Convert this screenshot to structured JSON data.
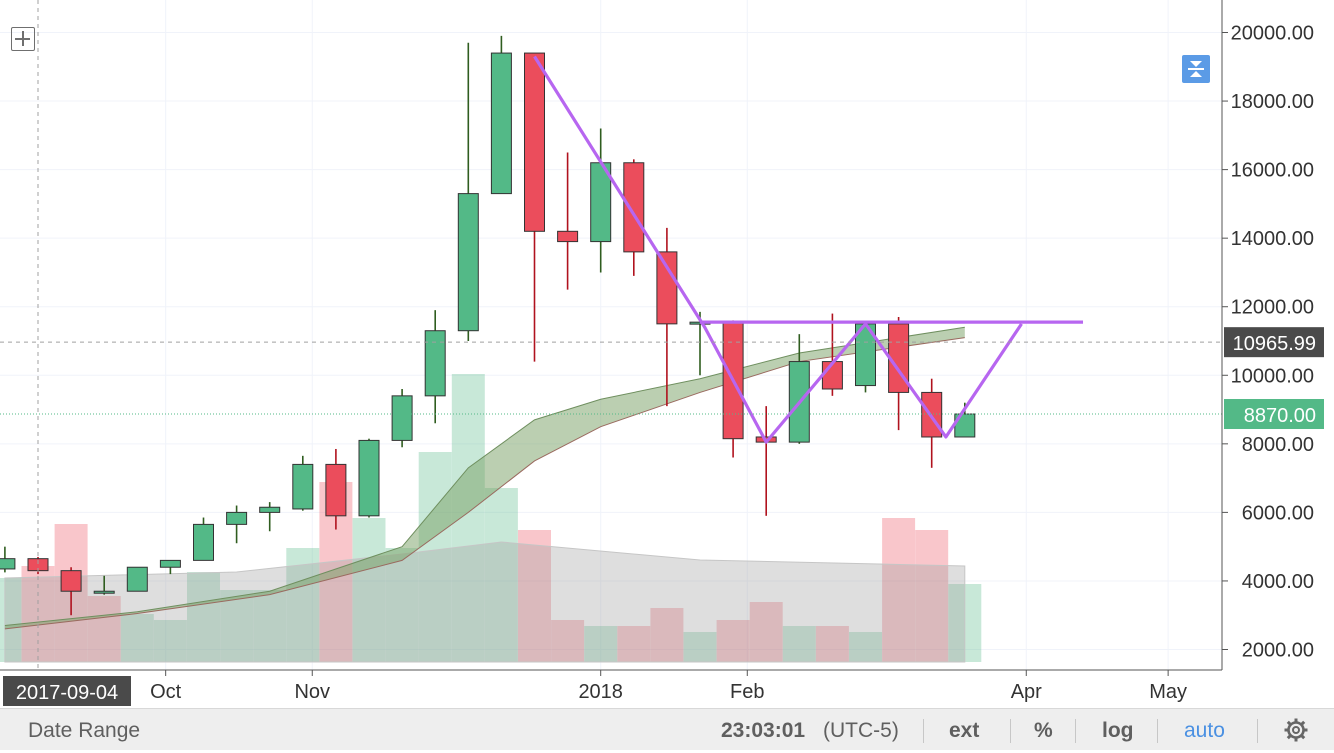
{
  "toolbar": {
    "date_range_label": "Date Range",
    "time": "23:03:01",
    "timezone": "(UTC-5)",
    "ext_label": "ext",
    "percent_label": "%",
    "log_label": "log",
    "auto_label": "auto",
    "icons": {
      "crosshair": "crosshair-icon",
      "compress": "compress-icon",
      "settings": "gear-icon"
    }
  },
  "chart_data": {
    "type": "candlestick",
    "title": "",
    "ylim": [
      1600,
      20700
    ],
    "y_ticks": [
      2000,
      4000,
      6000,
      8000,
      10000,
      12000,
      14000,
      16000,
      18000,
      20000
    ],
    "y_tick_labels": [
      "2000.00",
      "4000.00",
      "6000.00",
      "8000.00",
      "10000.00",
      "12000.00",
      "14000.00",
      "16000.00",
      "18000.00",
      "20000.00"
    ],
    "x_ticks": [
      {
        "label": "Oct",
        "date": "2017-10-01"
      },
      {
        "label": "Nov",
        "date": "2017-11-01"
      },
      {
        "label": "2018",
        "date": "2018-01-01"
      },
      {
        "label": "Feb",
        "date": "2018-02-01"
      },
      {
        "label": "Apr",
        "date": "2018-04-01"
      },
      {
        "label": "May",
        "date": "2018-05-01"
      }
    ],
    "cursor_date_label": "2017-09-04",
    "cursor_date": "2017-09-04",
    "cursor_price_label": "10965.99",
    "cursor_price": 10965.99,
    "last_price_label": "8870.00",
    "last_price": 8870,
    "colors": {
      "up": "#53b987",
      "down": "#eb4d5c",
      "pattern": "#b766f0",
      "cloud": "#9dbf8f",
      "volume_avg": "#cfcfcf"
    },
    "candles": [
      {
        "date": "2017-08-28",
        "open": 4350,
        "high": 5000,
        "low": 4250,
        "close": 4650
      },
      {
        "date": "2017-09-04",
        "open": 4650,
        "high": 4700,
        "low": 4200,
        "close": 4300
      },
      {
        "date": "2017-09-11",
        "open": 4300,
        "high": 4400,
        "low": 3000,
        "close": 3700
      },
      {
        "date": "2017-09-18",
        "open": 3700,
        "high": 4150,
        "low": 3600,
        "close": 3700
      },
      {
        "date": "2017-09-25",
        "open": 3700,
        "high": 4400,
        "low": 3700,
        "close": 4400
      },
      {
        "date": "2017-10-02",
        "open": 4400,
        "high": 4600,
        "low": 4200,
        "close": 4600
      },
      {
        "date": "2017-10-09",
        "open": 4600,
        "high": 5850,
        "low": 4600,
        "close": 5650
      },
      {
        "date": "2017-10-16",
        "open": 5650,
        "high": 6200,
        "low": 5100,
        "close": 6000
      },
      {
        "date": "2017-10-23",
        "open": 6000,
        "high": 6300,
        "low": 5450,
        "close": 6150
      },
      {
        "date": "2017-10-30",
        "open": 6100,
        "high": 7650,
        "low": 6050,
        "close": 7400
      },
      {
        "date": "2017-11-06",
        "open": 7400,
        "high": 7850,
        "low": 5500,
        "close": 5900
      },
      {
        "date": "2017-11-13",
        "open": 5900,
        "high": 8150,
        "low": 5850,
        "close": 8100
      },
      {
        "date": "2017-11-20",
        "open": 8100,
        "high": 9600,
        "low": 7900,
        "close": 9400
      },
      {
        "date": "2017-11-27",
        "open": 9400,
        "high": 11900,
        "low": 8600,
        "close": 11300
      },
      {
        "date": "2017-12-04",
        "open": 11300,
        "high": 19700,
        "low": 11000,
        "close": 15300
      },
      {
        "date": "2017-12-11",
        "open": 15300,
        "high": 19900,
        "low": 15300,
        "close": 19400
      },
      {
        "date": "2017-12-18",
        "open": 19400,
        "high": 19400,
        "low": 10400,
        "close": 14200
      },
      {
        "date": "2017-12-25",
        "open": 14200,
        "high": 16500,
        "low": 12500,
        "close": 13900
      },
      {
        "date": "2018-01-01",
        "open": 13900,
        "high": 17200,
        "low": 13000,
        "close": 16200
      },
      {
        "date": "2018-01-08",
        "open": 16200,
        "high": 16300,
        "low": 12900,
        "close": 13600
      },
      {
        "date": "2018-01-15",
        "open": 13600,
        "high": 14300,
        "low": 9100,
        "close": 11500
      },
      {
        "date": "2018-01-22",
        "open": 11500,
        "high": 11850,
        "low": 10000,
        "close": 11550
      },
      {
        "date": "2018-01-29",
        "open": 11550,
        "high": 11600,
        "low": 7600,
        "close": 8150
      },
      {
        "date": "2018-02-05",
        "open": 8200,
        "high": 9100,
        "low": 5900,
        "close": 8050
      },
      {
        "date": "2018-02-12",
        "open": 8050,
        "high": 11200,
        "low": 8000,
        "close": 10400
      },
      {
        "date": "2018-02-19",
        "open": 10400,
        "high": 11800,
        "low": 9400,
        "close": 9600
      },
      {
        "date": "2018-02-26",
        "open": 9700,
        "high": 11500,
        "low": 9500,
        "close": 11500
      },
      {
        "date": "2018-03-05",
        "open": 11500,
        "high": 11700,
        "low": 8400,
        "close": 9500
      },
      {
        "date": "2018-03-12",
        "open": 9500,
        "high": 9900,
        "low": 7300,
        "close": 8200
      },
      {
        "date": "2018-03-19",
        "open": 8200,
        "high": 9200,
        "low": 8200,
        "close": 8870
      }
    ],
    "cloud_upper": [
      {
        "date": "2017-08-28",
        "value": 2700
      },
      {
        "date": "2017-09-25",
        "value": 3100
      },
      {
        "date": "2017-10-23",
        "value": 3700
      },
      {
        "date": "2017-11-20",
        "value": 5000
      },
      {
        "date": "2017-12-04",
        "value": 7300
      },
      {
        "date": "2017-12-18",
        "value": 8700
      },
      {
        "date": "2018-01-01",
        "value": 9300
      },
      {
        "date": "2018-01-22",
        "value": 9900
      },
      {
        "date": "2018-02-12",
        "value": 10650
      },
      {
        "date": "2018-03-19",
        "value": 11400
      }
    ],
    "cloud_lower": [
      {
        "date": "2017-08-28",
        "value": 2600
      },
      {
        "date": "2017-09-25",
        "value": 3050
      },
      {
        "date": "2017-10-23",
        "value": 3600
      },
      {
        "date": "2017-11-20",
        "value": 4600
      },
      {
        "date": "2017-12-04",
        "value": 6000
      },
      {
        "date": "2017-12-18",
        "value": 7500
      },
      {
        "date": "2018-01-01",
        "value": 8500
      },
      {
        "date": "2018-01-22",
        "value": 9500
      },
      {
        "date": "2018-02-12",
        "value": 10400
      },
      {
        "date": "2018-03-19",
        "value": 11100
      }
    ],
    "volume": [
      {
        "date": "2017-08-28",
        "level": 0.14,
        "up": true
      },
      {
        "date": "2017-09-04",
        "level": 0.16,
        "up": false
      },
      {
        "date": "2017-09-11",
        "level": 0.23,
        "up": false
      },
      {
        "date": "2017-09-18",
        "level": 0.11,
        "up": false
      },
      {
        "date": "2017-09-25",
        "level": 0.08,
        "up": true
      },
      {
        "date": "2017-10-02",
        "level": 0.07,
        "up": true
      },
      {
        "date": "2017-10-09",
        "level": 0.15,
        "up": true
      },
      {
        "date": "2017-10-16",
        "level": 0.12,
        "up": true
      },
      {
        "date": "2017-10-23",
        "level": 0.12,
        "up": true
      },
      {
        "date": "2017-10-30",
        "level": 0.19,
        "up": true
      },
      {
        "date": "2017-11-06",
        "level": 0.3,
        "up": false
      },
      {
        "date": "2017-11-13",
        "level": 0.24,
        "up": true
      },
      {
        "date": "2017-11-20",
        "level": 0.19,
        "up": true
      },
      {
        "date": "2017-11-27",
        "level": 0.35,
        "up": true
      },
      {
        "date": "2017-12-04",
        "level": 0.48,
        "up": true
      },
      {
        "date": "2017-12-11",
        "level": 0.29,
        "up": true
      },
      {
        "date": "2017-12-18",
        "level": 0.22,
        "up": false
      },
      {
        "date": "2017-12-25",
        "level": 0.07,
        "up": false
      },
      {
        "date": "2018-01-01",
        "level": 0.06,
        "up": true
      },
      {
        "date": "2018-01-08",
        "level": 0.06,
        "up": false
      },
      {
        "date": "2018-01-15",
        "level": 0.09,
        "up": false
      },
      {
        "date": "2018-01-22",
        "level": 0.05,
        "up": true
      },
      {
        "date": "2018-01-29",
        "level": 0.07,
        "up": false
      },
      {
        "date": "2018-02-05",
        "level": 0.1,
        "up": false
      },
      {
        "date": "2018-02-12",
        "level": 0.06,
        "up": true
      },
      {
        "date": "2018-02-19",
        "level": 0.06,
        "up": false
      },
      {
        "date": "2018-02-26",
        "level": 0.05,
        "up": true
      },
      {
        "date": "2018-03-05",
        "level": 0.24,
        "up": false
      },
      {
        "date": "2018-03-12",
        "level": 0.22,
        "up": false
      },
      {
        "date": "2018-03-19",
        "level": 0.13,
        "up": true
      }
    ],
    "volume_average": [
      {
        "date": "2017-08-28",
        "level": 0.14
      },
      {
        "date": "2017-10-16",
        "level": 0.15
      },
      {
        "date": "2017-11-20",
        "level": 0.18
      },
      {
        "date": "2017-12-11",
        "level": 0.2
      },
      {
        "date": "2018-01-22",
        "level": 0.17
      },
      {
        "date": "2018-03-19",
        "level": 0.16
      }
    ],
    "pattern_line": [
      {
        "date": "2017-12-18",
        "value": 19300
      },
      {
        "date": "2018-01-23",
        "value": 11400
      },
      {
        "date": "2018-02-05",
        "value": 8050
      },
      {
        "date": "2018-02-26",
        "value": 11500
      },
      {
        "date": "2018-03-15",
        "value": 8200
      },
      {
        "date": "2018-03-31",
        "value": 11500
      }
    ],
    "resistance_line": {
      "start": "2018-01-22",
      "end": "2018-04-13",
      "value": 11550
    }
  }
}
